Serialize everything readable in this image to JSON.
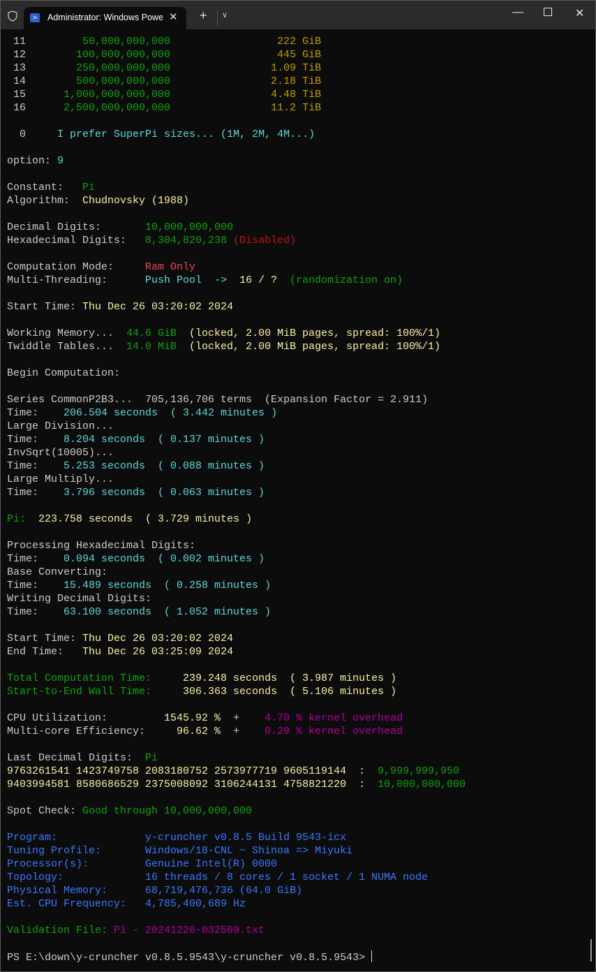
{
  "window": {
    "tab_title": "Administrator: Windows PowerShell",
    "tab_icon": "powershell-icon",
    "controls": [
      "minimize-icon",
      "maximize-icon",
      "close-icon"
    ]
  },
  "colors": {
    "gray": "#cccccc",
    "green": "#13a10e",
    "yellow": "#f9f1a5",
    "cyan": "#61d6d6",
    "gold": "#c19c00",
    "red": "#e74856",
    "darkred": "#c50f1f",
    "magenta": "#b4009e",
    "blue": "#3b78ff",
    "background": "#0c0c0c"
  },
  "terminal": {
    "lines": [
      [
        [
          " 11",
          "gray"
        ],
        [
          "         50,000,000,000",
          "green"
        ],
        [
          "                 222 GiB",
          "gold"
        ]
      ],
      [
        [
          " 12",
          "gray"
        ],
        [
          "        100,000,000,000",
          "green"
        ],
        [
          "                 445 GiB",
          "gold"
        ]
      ],
      [
        [
          " 13",
          "gray"
        ],
        [
          "        250,000,000,000",
          "green"
        ],
        [
          "                1.09 TiB",
          "gold"
        ]
      ],
      [
        [
          " 14",
          "gray"
        ],
        [
          "        500,000,000,000",
          "green"
        ],
        [
          "                2.18 TiB",
          "gold"
        ]
      ],
      [
        [
          " 15",
          "gray"
        ],
        [
          "      1,000,000,000,000",
          "green"
        ],
        [
          "                4.48 TiB",
          "gold"
        ]
      ],
      [
        [
          " 16",
          "gray"
        ],
        [
          "      2,500,000,000,000",
          "green"
        ],
        [
          "                11.2 TiB",
          "gold"
        ]
      ],
      [],
      [
        [
          "  0",
          "gray"
        ],
        [
          "     I prefer SuperPi sizes... (1M, 2M, 4M...)",
          "cyan"
        ]
      ],
      [],
      [
        [
          "option: ",
          "gray"
        ],
        [
          "9",
          "cyan"
        ]
      ],
      [],
      [
        [
          "Constant:   ",
          "gray"
        ],
        [
          "Pi",
          "green"
        ]
      ],
      [
        [
          "Algorithm:  ",
          "gray"
        ],
        [
          "Chudnovsky (1988)",
          "yellow"
        ]
      ],
      [],
      [
        [
          "Decimal Digits:       ",
          "gray"
        ],
        [
          "10,000,000,000",
          "green"
        ]
      ],
      [
        [
          "Hexadecimal Digits:   ",
          "gray"
        ],
        [
          "8,304,820,238",
          "green"
        ],
        [
          " (Disabled)",
          "darkred"
        ]
      ],
      [],
      [
        [
          "Computation Mode:     ",
          "gray"
        ],
        [
          "Ram Only",
          "red"
        ]
      ],
      [
        [
          "Multi-Threading:      ",
          "gray"
        ],
        [
          "Push Pool  ->  ",
          "cyan"
        ],
        [
          "16 / ?",
          "yellow"
        ],
        [
          "  (randomization on)",
          "green"
        ]
      ],
      [],
      [
        [
          "Start Time: ",
          "gray"
        ],
        [
          "Thu Dec 26 03:20:02 2024",
          "yellow"
        ]
      ],
      [],
      [
        [
          "Working Memory...  ",
          "gray"
        ],
        [
          "44.6 GiB",
          "green"
        ],
        [
          "  (locked, 2.00 MiB pages, spread: 100%/1)",
          "yellow"
        ]
      ],
      [
        [
          "Twiddle Tables...  ",
          "gray"
        ],
        [
          "14.0 MiB",
          "green"
        ],
        [
          "  (locked, 2.00 MiB pages, spread: 100%/1)",
          "yellow"
        ]
      ],
      [],
      [
        [
          "Begin Computation:",
          "gray"
        ]
      ],
      [],
      [
        [
          "Series CommonP2B3...  705,136,706 terms  (Expansion Factor = 2.911)",
          "gray"
        ]
      ],
      [
        [
          "Time:    ",
          "gray"
        ],
        [
          "206.504 seconds  ( 3.442 minutes )",
          "cyan"
        ]
      ],
      [
        [
          "Large Division...",
          "gray"
        ]
      ],
      [
        [
          "Time:    ",
          "gray"
        ],
        [
          "8.204 seconds  ( 0.137 minutes )",
          "cyan"
        ]
      ],
      [
        [
          "InvSqrt(10005)...",
          "gray"
        ]
      ],
      [
        [
          "Time:    ",
          "gray"
        ],
        [
          "5.253 seconds  ( 0.088 minutes )",
          "cyan"
        ]
      ],
      [
        [
          "Large Multiply...",
          "gray"
        ]
      ],
      [
        [
          "Time:    ",
          "gray"
        ],
        [
          "3.796 seconds  ( 0.063 minutes )",
          "cyan"
        ]
      ],
      [],
      [
        [
          "Pi:",
          "green"
        ],
        [
          "  223.758 seconds  ( 3.729 minutes )",
          "yellow"
        ]
      ],
      [],
      [
        [
          "Processing Hexadecimal Digits:",
          "gray"
        ]
      ],
      [
        [
          "Time:    ",
          "gray"
        ],
        [
          "0.094 seconds  ( 0.002 minutes )",
          "cyan"
        ]
      ],
      [
        [
          "Base Converting:",
          "gray"
        ]
      ],
      [
        [
          "Time:    ",
          "gray"
        ],
        [
          "15.489 seconds  ( 0.258 minutes )",
          "cyan"
        ]
      ],
      [
        [
          "Writing Decimal Digits:",
          "gray"
        ]
      ],
      [
        [
          "Time:    ",
          "gray"
        ],
        [
          "63.100 seconds  ( 1.052 minutes )",
          "cyan"
        ]
      ],
      [],
      [
        [
          "Start Time: ",
          "gray"
        ],
        [
          "Thu Dec 26 03:20:02 2024",
          "yellow"
        ]
      ],
      [
        [
          "End Time:   ",
          "gray"
        ],
        [
          "Thu Dec 26 03:25:09 2024",
          "yellow"
        ]
      ],
      [],
      [
        [
          "Total Computation Time:     ",
          "green"
        ],
        [
          "239.248 seconds  ( 3.987 minutes )",
          "yellow"
        ]
      ],
      [
        [
          "Start-to-End Wall Time:     ",
          "green"
        ],
        [
          "306.363 seconds  ( 5.106 minutes )",
          "yellow"
        ]
      ],
      [],
      [
        [
          "CPU Utilization:         ",
          "gray"
        ],
        [
          "1545.92 %",
          "yellow"
        ],
        [
          "  +    ",
          "gray"
        ],
        [
          "4.70 % kernel overhead",
          "magenta"
        ]
      ],
      [
        [
          "Multi-core Efficiency:     ",
          "gray"
        ],
        [
          "96.62 %",
          "yellow"
        ],
        [
          "  +    ",
          "gray"
        ],
        [
          "0.29 % kernel overhead",
          "magenta"
        ]
      ],
      [],
      [
        [
          "Last Decimal Digits:  ",
          "gray"
        ],
        [
          "Pi",
          "green"
        ]
      ],
      [
        [
          "9763261541 1423749758 2083180752 2573977719 9605119144  :  ",
          "yellow"
        ],
        [
          "9,999,999,950",
          "green"
        ]
      ],
      [
        [
          "9403994581 8580686529 2375008092 3106244131 4758821220  :  ",
          "yellow"
        ],
        [
          "10,000,000,000",
          "green"
        ]
      ],
      [],
      [
        [
          "Spot Check: ",
          "gray"
        ],
        [
          "Good through 10,000,000,000",
          "green"
        ]
      ],
      [],
      [
        [
          "Program:              y-cruncher v0.8.5 Build 9543-icx",
          "blue"
        ]
      ],
      [
        [
          "Tuning Profile:       Windows/18-CNL ~ Shinoa => Miyuki",
          "blue"
        ]
      ],
      [
        [
          "Processor(s):         Genuine Intel(R) 0000",
          "blue"
        ]
      ],
      [
        [
          "Topology:             16 threads / 8 cores / 1 socket / 1 NUMA node",
          "blue"
        ]
      ],
      [
        [
          "Physical Memory:      68,719,476,736 (64.0 GiB)",
          "blue"
        ]
      ],
      [
        [
          "Est. CPU Frequency:   4,785,400,689 Hz",
          "blue"
        ]
      ],
      [],
      [
        [
          "Validation File: ",
          "green"
        ],
        [
          "Pi - 20241226-032509.txt",
          "magenta"
        ]
      ],
      [],
      [
        [
          "PS E:\\down\\y-cruncher v0.8.5.9543\\y-cruncher v0.8.5.9543> ",
          "gray"
        ]
      ]
    ]
  }
}
